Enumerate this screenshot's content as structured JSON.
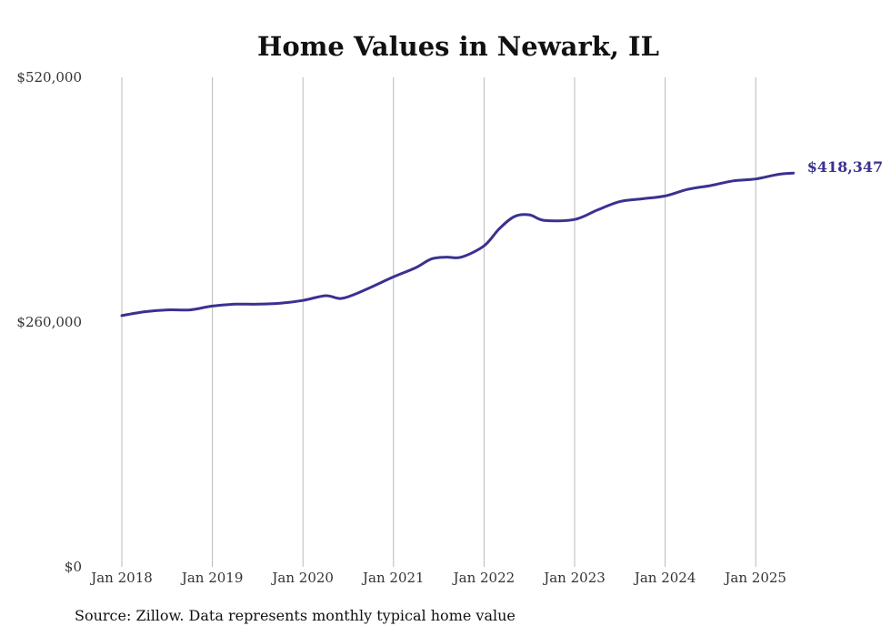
{
  "source_note": "Source: Zillow. Data represents monthly typical home value",
  "chart_data": {
    "type": "line",
    "title": "Home Values in Newark, IL",
    "xlabel": "",
    "ylabel": "",
    "ylim": [
      0,
      520000
    ],
    "yticks": [
      {
        "value": 0,
        "label": "$0"
      },
      {
        "value": 260000,
        "label": "$260,000"
      },
      {
        "value": 520000,
        "label": "$520,000"
      }
    ],
    "xticks": [
      {
        "value": "2018-01",
        "label": "Jan 2018"
      },
      {
        "value": "2019-01",
        "label": "Jan 2019"
      },
      {
        "value": "2020-01",
        "label": "Jan 2020"
      },
      {
        "value": "2021-01",
        "label": "Jan 2021"
      },
      {
        "value": "2022-01",
        "label": "Jan 2022"
      },
      {
        "value": "2023-01",
        "label": "Jan 2023"
      },
      {
        "value": "2024-01",
        "label": "Jan 2024"
      },
      {
        "value": "2025-01",
        "label": "Jan 2025"
      }
    ],
    "xgrid": true,
    "ygrid": false,
    "color": "#3a3191",
    "end_label": "$418,347",
    "series": [
      {
        "x": [
          "2018-01",
          "2018-04",
          "2018-07",
          "2018-10",
          "2019-01",
          "2019-04",
          "2019-07",
          "2019-10",
          "2020-01",
          "2020-04",
          "2020-06",
          "2020-08",
          "2020-10",
          "2021-01",
          "2021-04",
          "2021-06",
          "2021-08",
          "2021-10",
          "2022-01",
          "2022-03",
          "2022-05",
          "2022-07",
          "2022-09",
          "2023-01",
          "2023-04",
          "2023-07",
          "2023-10",
          "2024-01",
          "2024-04",
          "2024-07",
          "2024-10",
          "2025-01",
          "2025-04",
          "2025-06"
        ],
        "values": [
          267000,
          271000,
          273000,
          273000,
          277000,
          279000,
          279000,
          280000,
          283000,
          288000,
          285000,
          290000,
          297000,
          308000,
          318000,
          327000,
          329000,
          329000,
          341000,
          359000,
          372000,
          374000,
          368000,
          369000,
          379000,
          388000,
          391000,
          394000,
          401000,
          405000,
          410000,
          412000,
          417000,
          418347
        ]
      }
    ]
  }
}
